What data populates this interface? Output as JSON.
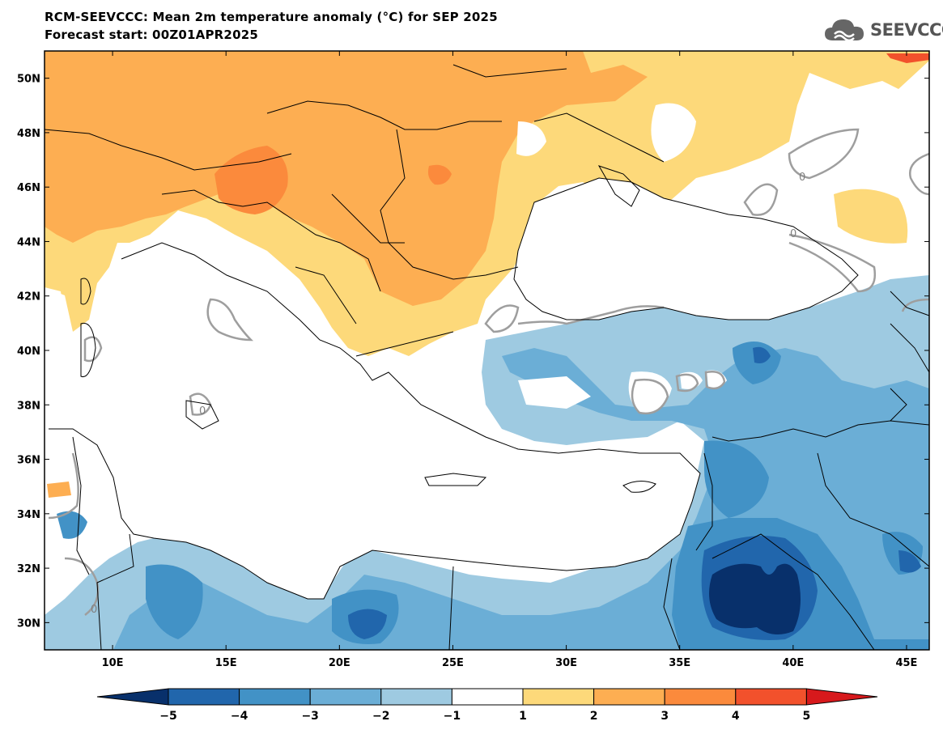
{
  "header": {
    "title": "RCM-SEEVCCC: Mean 2m temperature anomaly (°C) for SEP 2025",
    "subtitle": "Forecast start: 00Z01APR2025",
    "logo_text": "SEEVCCC",
    "logo_icon": "cloud-icon"
  },
  "map": {
    "projection": "lat-lon",
    "lon_range": [
      7,
      46
    ],
    "lat_range": [
      29,
      51
    ],
    "lat_ticks": [
      "30N",
      "32N",
      "34N",
      "36N",
      "38N",
      "40N",
      "42N",
      "44N",
      "46N",
      "48N",
      "50N"
    ],
    "lon_ticks": [
      "10E",
      "15E",
      "20E",
      "25E",
      "30E",
      "35E",
      "40E",
      "45E"
    ],
    "contour_label": "0"
  },
  "colorbar": {
    "labels": [
      "−5",
      "−4",
      "−3",
      "−2",
      "−1",
      "1",
      "2",
      "3",
      "4",
      "5"
    ],
    "colors": {
      "lt_minus5": "#08306b",
      "minus5_minus4": "#2166ac",
      "minus4_minus3": "#4292c6",
      "minus3_minus2": "#6baed6",
      "minus2_minus1": "#9ecae1",
      "minus1_plus1": "#ffffff",
      "plus1_plus2": "#fdd97a",
      "plus2_plus3": "#fdae52",
      "plus3_plus4": "#fb8a3c",
      "plus4_plus5": "#f2512c",
      "gt_plus5": "#d7191c"
    }
  }
}
